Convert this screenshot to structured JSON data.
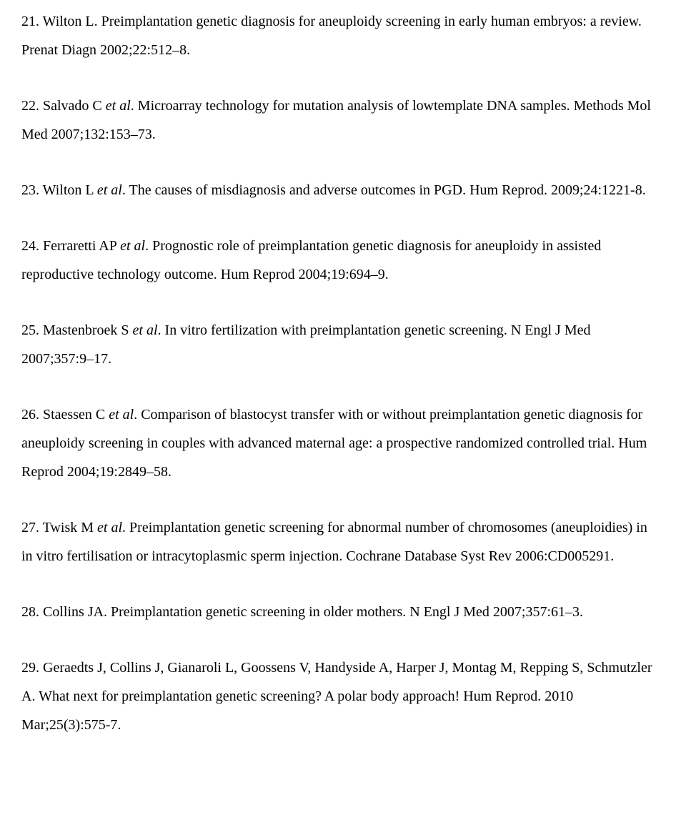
{
  "refs": [
    {
      "num": "21",
      "body_a": ". Wilton L. Preimplantation genetic diagnosis for aneuploidy screening in early human embryos: a review. Prenat Diagn 2002;22:512–8."
    },
    {
      "num": "22",
      "body_a": ". Salvado C ",
      "italic": "et al",
      "body_b": ". Microarray technology for mutation analysis of lowtemplate DNA samples. Methods Mol Med 2007;132:153–73."
    },
    {
      "num": "23",
      "body_a": ". Wilton L ",
      "italic": "et al",
      "body_b": ". The causes of misdiagnosis and adverse outcomes in PGD. Hum Reprod. 2009;24:1221-8."
    },
    {
      "num": "24",
      "body_a": ". Ferraretti AP ",
      "italic": "et al",
      "body_b": ". Prognostic role of preimplantation genetic diagnosis for aneuploidy in assisted reproductive technology outcome. Hum Reprod 2004;19:694–9."
    },
    {
      "num": "25",
      "body_a": ". Mastenbroek S ",
      "italic": "et al",
      "body_b": ". In vitro fertilization with preimplantation genetic screening. N Engl J Med 2007;357:9–17."
    },
    {
      "num": "26",
      "body_a": ". Staessen C ",
      "italic": "et al",
      "body_b": ". Comparison of blastocyst transfer with or without preimplantation genetic diagnosis for aneuploidy screening in couples with advanced maternal age: a prospective randomized controlled trial. Hum Reprod 2004;19:2849–58."
    },
    {
      "num": "27",
      "body_a": ". Twisk M ",
      "italic": "et al",
      "body_b": ". Preimplantation genetic screening for abnormal number of chromosomes (aneuploidies) in in vitro fertilisation or intracytoplasmic sperm injection. Cochrane Database Syst Rev 2006:CD005291."
    },
    {
      "num": "28",
      "body_a": ". Collins JA. Preimplantation genetic screening in older mothers. N Engl J Med 2007;357:61–3."
    },
    {
      "num": "29",
      "body_a": ". Geraedts J, Collins J, Gianaroli L, Goossens V, Handyside A, Harper J, Montag  M, Repping S, Schmutzler A. What next for preimplantation genetic screening? A polar body approach! Hum Reprod. 2010 Mar;25(3):575-7."
    }
  ]
}
